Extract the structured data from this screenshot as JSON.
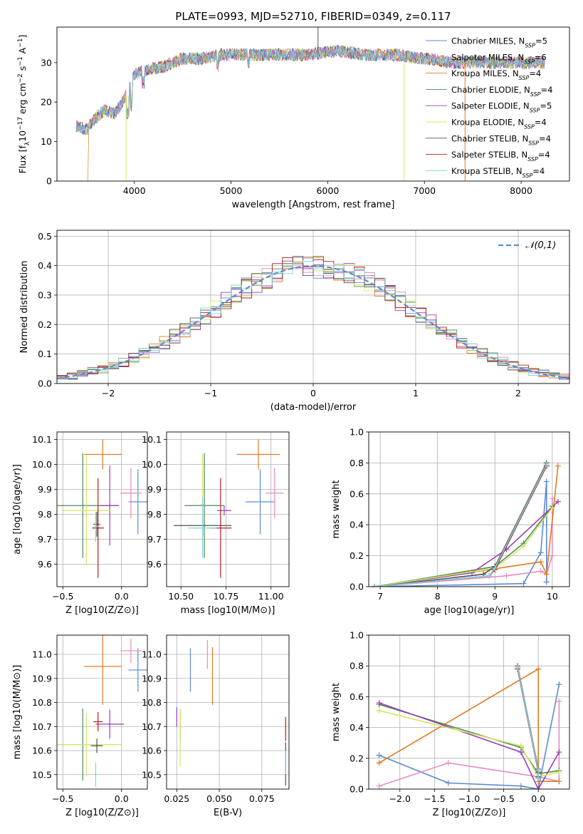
{
  "page": {
    "title": "PLATE=0993, MJD=52710, FIBERID=0349, z=0.117"
  },
  "colors": {
    "chabrier_miles": "#5b8bd4",
    "salpeter_miles": "#e68bc0",
    "kroupa_miles": "#e07c22",
    "chabrier_elodie": "#4f8a5b",
    "salpeter_elodie": "#9b3fb5",
    "kroupa_elodie": "#d2e65a",
    "chabrier_stelib": "#505050",
    "salpeter_stelib": "#b71c1c",
    "kroupa_stelib": "#7fd3dd",
    "normal_curve": "#5b8bd4",
    "grid": "#b0b0b0"
  },
  "chart_data": [
    {
      "type": "line",
      "id": "spectrum",
      "title": "PLATE=0993, MJD=52710, FIBERID=0349, z=0.117",
      "xlabel": "wavelength [Angstrom, rest frame]",
      "ylabel": "Flux [f_λ 10^-17 erg cm^-2 s^-1 A^-1]",
      "xlim": [
        3200,
        8500
      ],
      "ylim": [
        0,
        39
      ],
      "xticks": [
        "4000",
        "5000",
        "6000",
        "7000",
        "8000"
      ],
      "yticks": [
        "0",
        "10",
        "20",
        "30"
      ],
      "x": [
        3400,
        3500,
        3600,
        3700,
        3800,
        3900,
        4000,
        4100,
        4300,
        4500,
        4700,
        4900,
        5200,
        5500,
        5800,
        6100,
        6400,
        6700,
        7000,
        7300,
        7600,
        7900,
        8200
      ],
      "y": [
        14,
        13,
        16,
        18,
        17,
        21,
        27,
        28,
        29,
        31,
        31,
        32,
        32,
        32,
        32,
        33,
        32,
        32,
        31,
        30,
        30,
        30,
        30
      ],
      "series": [
        {
          "name": "Chabrier MILES, N_SSP=5",
          "legend_label": "Chabrier MILES, N",
          "legend_ssp": "=5"
        },
        {
          "name": "Salpeter MILES, N_SSP=6",
          "legend_label": "Salpeter MILES, N",
          "legend_ssp": "=6"
        },
        {
          "name": "Kroupa MILES, N_SSP=4",
          "legend_label": "Kroupa MILES, N",
          "legend_ssp": "=4"
        },
        {
          "name": "Chabrier ELODIE, N_SSP=4",
          "legend_label": "Chabrier ELODIE, N",
          "legend_ssp": "=4"
        },
        {
          "name": "Salpeter ELODIE, N_SSP=5",
          "legend_label": "Salpeter ELODIE, N",
          "legend_ssp": "=5"
        },
        {
          "name": "Kroupa ELODIE, N_SSP=4",
          "legend_label": "Kroupa ELODIE, N",
          "legend_ssp": "=4"
        },
        {
          "name": "Chabrier STELIB, N_SSP=4",
          "legend_label": "Chabrier STELIB, N",
          "legend_ssp": "=4"
        },
        {
          "name": "Salpeter STELIB, N_SSP=4",
          "legend_label": "Salpeter STELIB, N",
          "legend_ssp": "=4"
        },
        {
          "name": "Kroupa STELIB, N_SSP=4",
          "legend_label": "Kroupa STELIB, N",
          "legend_ssp": "=4"
        }
      ],
      "legend_sub": "SSP",
      "legend_placement": "right"
    },
    {
      "type": "line",
      "id": "residuals",
      "xlabel": "(data-model)/error",
      "ylabel": "Normed distribution",
      "xlim": [
        -2.5,
        2.5
      ],
      "ylim": [
        0,
        0.52
      ],
      "xticks": [
        "−2",
        "−1",
        "0",
        "1",
        "2"
      ],
      "yticks": [
        "0.0",
        "0.1",
        "0.2",
        "0.3",
        "0.4",
        "0.5"
      ],
      "grid": true,
      "legend": {
        "label": "𝒩(0,1)",
        "placement": "top-right"
      },
      "x": [
        -2.5,
        -2.0,
        -1.5,
        -1.0,
        -0.5,
        0.0,
        0.5,
        1.0,
        1.5,
        2.0,
        2.5
      ],
      "y": [
        0.02,
        0.05,
        0.13,
        0.24,
        0.35,
        0.4,
        0.35,
        0.24,
        0.13,
        0.05,
        0.02
      ]
    },
    {
      "type": "scatter",
      "id": "age_vs_z",
      "xlabel": "Z [log10(Z/Z⊙)]",
      "ylabel": "age [log10(age/yr)]",
      "xlim": [
        -0.55,
        0.22
      ],
      "ylim": [
        9.51,
        10.13
      ],
      "xticks": [
        "−0.5",
        "0.0"
      ],
      "yticks": [
        "9.6",
        "9.7",
        "9.8",
        "9.9",
        "10.0",
        "10.1"
      ],
      "grid": true,
      "points": [
        {
          "series": "Chabrier MILES",
          "x": 0.14,
          "y": 9.85,
          "xerr": 0.08,
          "yerr": 0.13
        },
        {
          "series": "Salpeter MILES",
          "x": 0.08,
          "y": 9.885,
          "xerr": 0.09,
          "yerr": 0.1
        },
        {
          "series": "Kroupa MILES",
          "x": -0.16,
          "y": 10.04,
          "xerr": 0.16,
          "yerr": 0.06
        },
        {
          "series": "Chabrier ELODIE",
          "x": -0.33,
          "y": 9.835,
          "xerr": 0.3,
          "yerr": 0.21
        },
        {
          "series": "Salpeter ELODIE",
          "x": -0.1,
          "y": 9.835,
          "xerr": 0.08,
          "yerr": 0.16
        },
        {
          "series": "Kroupa ELODIE",
          "x": -0.3,
          "y": 9.815,
          "xerr": 0.21,
          "yerr": 0.22
        },
        {
          "series": "Chabrier STELIB",
          "x": -0.21,
          "y": 9.76,
          "xerr": 0.03,
          "yerr": 0.05
        },
        {
          "series": "Salpeter STELIB",
          "x": -0.2,
          "y": 9.745,
          "xerr": 0.05,
          "yerr": 0.2
        },
        {
          "series": "Kroupa STELIB",
          "x": -0.22,
          "y": 9.75,
          "xerr": 0.02,
          "yerr": 0.06
        }
      ]
    },
    {
      "type": "scatter",
      "id": "age_vs_mass",
      "xlabel": "mass [log10(M/M⊙)]",
      "ylabel": "",
      "xlim": [
        10.42,
        11.1
      ],
      "ylim": [
        9.51,
        10.13
      ],
      "xticks": [
        "10.50",
        "10.75",
        "11.00"
      ],
      "yticks": [
        "9.6",
        "9.7",
        "9.8",
        "9.9",
        "10.0",
        "10.1"
      ],
      "grid": true,
      "points": [
        {
          "series": "Chabrier MILES",
          "x": 10.94,
          "y": 9.85,
          "xerr": 0.08,
          "yerr": 0.13
        },
        {
          "series": "Salpeter MILES",
          "x": 11.02,
          "y": 9.885,
          "xerr": 0.05,
          "yerr": 0.1
        },
        {
          "series": "Kroupa MILES",
          "x": 10.93,
          "y": 10.04,
          "xerr": 0.12,
          "yerr": 0.06
        },
        {
          "series": "Chabrier ELODIE",
          "x": 10.63,
          "y": 9.835,
          "xerr": 0.11,
          "yerr": 0.21
        },
        {
          "series": "Salpeter ELODIE",
          "x": 10.74,
          "y": 9.815,
          "xerr": 0.04,
          "yerr": 0.02
        },
        {
          "series": "Kroupa ELODIE",
          "x": 10.62,
          "y": 9.84,
          "xerr": 0.01,
          "yerr": 0.2
        },
        {
          "series": "Chabrier STELIB",
          "x": 10.62,
          "y": 9.755,
          "xerr": 0.16,
          "yerr": 0.04
        },
        {
          "series": "Salpeter STELIB",
          "x": 10.72,
          "y": 9.745,
          "xerr": 0.06,
          "yerr": 0.2
        },
        {
          "series": "Kroupa STELIB",
          "x": 10.62,
          "y": 9.745,
          "xerr": 0.08,
          "yerr": 0.12
        }
      ]
    },
    {
      "type": "line",
      "id": "massweight_vs_age",
      "xlabel": "age [log10(age/yr)]",
      "ylabel": "mass weight",
      "xlim": [
        6.8,
        10.3
      ],
      "ylim": [
        0,
        1.0
      ],
      "xticks": [
        "7",
        "8",
        "9",
        "10"
      ],
      "yticks": [
        "0.0",
        "0.2",
        "0.4",
        "0.6",
        "0.8",
        "1.0"
      ],
      "grid": true,
      "series": [
        {
          "name": "Chabrier MILES",
          "x": [
            6.9,
            9.5,
            9.8,
            9.9,
            9.9
          ],
          "y": [
            0.0,
            0.02,
            0.22,
            0.68,
            0.03
          ]
        },
        {
          "name": "Salpeter MILES",
          "x": [
            6.9,
            9.2,
            9.8,
            9.9,
            10.0,
            10.0
          ],
          "y": [
            0.0,
            0.07,
            0.1,
            0.08,
            0.2,
            0.57
          ]
        },
        {
          "name": "Kroupa MILES",
          "x": [
            6.9,
            9.8,
            9.9,
            10.1
          ],
          "y": [
            0.0,
            0.16,
            0.08,
            0.78
          ]
        },
        {
          "name": "Chabrier ELODIE",
          "x": [
            6.9,
            9.0,
            9.5,
            10.0
          ],
          "y": [
            0.0,
            0.13,
            0.28,
            0.52
          ]
        },
        {
          "name": "Salpeter ELODIE",
          "x": [
            6.9,
            8.6,
            9.2,
            10.1
          ],
          "y": [
            0.0,
            0.09,
            0.24,
            0.55
          ]
        },
        {
          "name": "Kroupa ELODIE",
          "x": [
            6.9,
            9.0,
            9.5,
            10.0
          ],
          "y": [
            0.0,
            0.12,
            0.26,
            0.51
          ]
        },
        {
          "name": "Chabrier STELIB",
          "x": [
            6.9,
            8.8,
            9.0,
            9.9
          ],
          "y": [
            0.0,
            0.08,
            0.13,
            0.8
          ]
        },
        {
          "name": "Salpeter STELIB",
          "x": [
            6.9,
            8.9,
            9.0,
            9.9
          ],
          "y": [
            0.0,
            0.07,
            0.11,
            0.78
          ]
        },
        {
          "name": "Kroupa STELIB",
          "x": [
            6.9,
            8.9,
            9.0,
            9.9
          ],
          "y": [
            0.0,
            0.07,
            0.12,
            0.79
          ]
        }
      ]
    },
    {
      "type": "scatter",
      "id": "mass_vs_z",
      "xlabel": "Z [log10(Z/Z⊙)]",
      "ylabel": "mass [log10(M/M⊙)]",
      "xlim": [
        -0.55,
        0.22
      ],
      "ylim": [
        10.44,
        11.08
      ],
      "xticks": [
        "−0.5",
        "0.0"
      ],
      "yticks": [
        "10.5",
        "10.6",
        "10.7",
        "10.8",
        "10.9",
        "11.0"
      ],
      "grid": true,
      "points": [
        {
          "series": "Chabrier MILES",
          "x": 0.14,
          "y": 10.935,
          "xerr": 0.08,
          "yerr": 0.09
        },
        {
          "series": "Salpeter MILES",
          "x": 0.08,
          "y": 11.015,
          "xerr": 0.09,
          "yerr": 0.05
        },
        {
          "series": "Kroupa MILES",
          "x": -0.16,
          "y": 10.95,
          "xerr": 0.16,
          "yerr": 0.16
        },
        {
          "series": "Chabrier ELODIE",
          "x": -0.33,
          "y": 10.625,
          "xerr": 0.3,
          "yerr": 0.15
        },
        {
          "series": "Salpeter ELODIE",
          "x": -0.1,
          "y": 10.71,
          "xerr": 0.12,
          "yerr": 0.06
        },
        {
          "series": "Kroupa ELODIE",
          "x": -0.3,
          "y": 10.625,
          "xerr": 0.3,
          "yerr": 0.13
        },
        {
          "series": "Chabrier STELIB",
          "x": -0.21,
          "y": 10.62,
          "xerr": 0.05,
          "yerr": 0.03
        },
        {
          "series": "Salpeter STELIB",
          "x": -0.2,
          "y": 10.72,
          "xerr": 0.04,
          "yerr": 0.04
        },
        {
          "series": "Kroupa STELIB",
          "x": -0.22,
          "y": 10.5,
          "xerr": 0.01,
          "yerr": 0.05
        }
      ]
    },
    {
      "type": "scatter",
      "id": "mass_vs_ebv",
      "xlabel": "E(B-V)",
      "ylabel": "",
      "xlim": [
        0.019,
        0.091
      ],
      "ylim": [
        10.44,
        11.08
      ],
      "xticks": [
        "0.025",
        "0.050",
        "0.075"
      ],
      "yticks": [
        "10.5",
        "10.6",
        "10.7",
        "10.8",
        "10.9",
        "11.0"
      ],
      "grid": true,
      "points": [
        {
          "series": "Chabrier MILES",
          "x": 0.033,
          "y": 10.935,
          "yerr": 0.09
        },
        {
          "series": "Salpeter MILES",
          "x": 0.043,
          "y": 11.0,
          "yerr": 0.06
        },
        {
          "series": "Kroupa MILES",
          "x": 0.046,
          "y": 10.91,
          "yerr": 0.12
        },
        {
          "series": "Chabrier ELODIE",
          "x": 0.027,
          "y": 10.71,
          "yerr": 0.06
        },
        {
          "series": "Salpeter ELODIE",
          "x": 0.025,
          "y": 10.74,
          "yerr": 0.04
        },
        {
          "series": "Kroupa ELODIE",
          "x": 0.027,
          "y": 10.655,
          "yerr": 0.12
        },
        {
          "series": "Chabrier STELIB",
          "x": 0.089,
          "y": 10.545,
          "yerr": 0.09
        },
        {
          "series": "Salpeter STELIB",
          "x": 0.089,
          "y": 10.69,
          "yerr": 0.05
        },
        {
          "series": "Kroupa STELIB",
          "x": 0.089,
          "y": 10.55,
          "yerr": 0.05
        }
      ]
    },
    {
      "type": "line",
      "id": "massweight_vs_z",
      "xlabel": "Z [log10(Z/Z⊙)]",
      "ylabel": "mass weight",
      "xlim": [
        -2.45,
        0.45
      ],
      "ylim": [
        0,
        1.0
      ],
      "xticks": [
        "−2.0",
        "−1.5",
        "−1.0",
        "−0.5",
        "0.0"
      ],
      "yticks": [
        "0.0",
        "0.2",
        "0.4",
        "0.6",
        "0.8",
        "1.0"
      ],
      "grid": true,
      "series": [
        {
          "name": "Chabrier MILES",
          "x": [
            -2.3,
            -1.3,
            -0.25,
            0.0,
            0.3
          ],
          "y": [
            0.22,
            0.04,
            0.02,
            0.0,
            0.68
          ]
        },
        {
          "name": "Salpeter MILES",
          "x": [
            -2.3,
            -1.3,
            0.0,
            0.3,
            0.3
          ],
          "y": [
            0.02,
            0.17,
            0.08,
            0.05,
            0.57
          ]
        },
        {
          "name": "Kroupa MILES",
          "x": [
            -2.3,
            0.0,
            0.0,
            0.3
          ],
          "y": [
            0.17,
            0.78,
            0.05,
            0.05
          ]
        },
        {
          "name": "Chabrier ELODIE",
          "x": [
            -2.3,
            -0.25,
            0.0,
            0.3
          ],
          "y": [
            0.55,
            0.27,
            0.1,
            0.12
          ]
        },
        {
          "name": "Salpeter ELODIE",
          "x": [
            -2.3,
            -0.25,
            0.0,
            0.3
          ],
          "y": [
            0.56,
            0.24,
            0.0,
            0.24
          ]
        },
        {
          "name": "Kroupa ELODIE",
          "x": [
            -2.3,
            -0.25,
            0.0,
            0.3
          ],
          "y": [
            0.51,
            0.28,
            0.08,
            0.11
          ]
        },
        {
          "name": "Chabrier STELIB",
          "x": [
            -0.3,
            0.0,
            0.0
          ],
          "y": [
            0.8,
            0.13,
            0.08
          ]
        },
        {
          "name": "Salpeter STELIB",
          "x": [
            -0.3,
            0.0,
            0.0
          ],
          "y": [
            0.78,
            0.11,
            0.07
          ]
        },
        {
          "name": "Kroupa STELIB",
          "x": [
            -0.3,
            0.0,
            0.0
          ],
          "y": [
            0.79,
            0.12,
            0.07
          ]
        }
      ]
    }
  ]
}
